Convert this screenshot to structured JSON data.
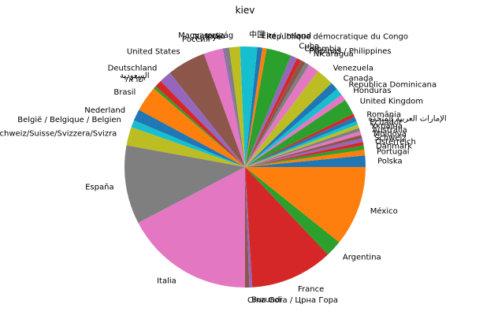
{
  "chart_data": {
    "type": "pie",
    "title": "kiev",
    "start_angle_deg": 0,
    "direction": "counterclockwise",
    "slices": [
      {
        "label": "Polska",
        "value": 1.6,
        "color": "#1f77b4"
      },
      {
        "label": "Portugal",
        "value": 0.8,
        "color": "#ff7f0e"
      },
      {
        "label": "Danmark",
        "value": 0.6,
        "color": "#2ca02c"
      },
      {
        "label": "Österreich",
        "value": 0.5,
        "color": "#d62728"
      },
      {
        "label": "Schweiz",
        "value": 0.5,
        "color": "#9467bd"
      },
      {
        "label": "Moldova",
        "value": 0.5,
        "color": "#8c564b"
      },
      {
        "label": "Australia",
        "value": 0.5,
        "color": "#e377c2"
      },
      {
        "label": "Україна",
        "value": 0.5,
        "color": "#7f7f7f"
      },
      {
        "label": "Ecuador",
        "value": 0.5,
        "color": "#bcbd22"
      },
      {
        "label": "الإمارات العربية المتحدة",
        "value": 0.5,
        "color": "#17becf"
      },
      {
        "label": "România",
        "value": 0.6,
        "color": "#1f77b4"
      },
      {
        "label": "",
        "value": 0.5,
        "color": "#d62728"
      },
      {
        "label": "United Kingdom",
        "value": 2.2,
        "color": "#2ca02c"
      },
      {
        "label": "Honduras",
        "value": 0.9,
        "color": "#e377c2"
      },
      {
        "label": "República Dominicana",
        "value": 1.0,
        "color": "#17becf"
      },
      {
        "label": "Canada",
        "value": 1.1,
        "color": "#1f77b4"
      },
      {
        "label": "Venezuela",
        "value": 2.5,
        "color": "#bcbd22"
      },
      {
        "label": "",
        "value": 1.5,
        "color": "#e377c2"
      },
      {
        "label": "Nicaragua",
        "value": 0.6,
        "color": "#7f7f7f"
      },
      {
        "label": "Pilipinas / Philippines",
        "value": 0.7,
        "color": "#8c564b"
      },
      {
        "label": "Colombia",
        "value": 0.6,
        "color": "#d62728"
      },
      {
        "label": "Cuba",
        "value": 0.9,
        "color": "#9467bd"
      },
      {
        "label": "",
        "value": 3.5,
        "color": "#2ca02c"
      },
      {
        "label": "République démocratique du Congo",
        "value": 0.6,
        "color": "#ff7f0e"
      },
      {
        "label": "Éire / Ireland",
        "value": 0.7,
        "color": "#1f77b4"
      },
      {
        "label": "中国",
        "value": 2.4,
        "color": "#17becf"
      },
      {
        "label": "Magyarország",
        "value": 1.5,
        "color": "#bcbd22"
      },
      {
        "label": "India",
        "value": 0.6,
        "color": "#7f7f7f"
      },
      {
        "label": "Türkiye",
        "value": 0.3,
        "color": "#9467bd"
      },
      {
        "label": "Россия",
        "value": 2.7,
        "color": "#e377c2"
      },
      {
        "label": "United States",
        "value": 5.4,
        "color": "#8c564b"
      },
      {
        "label": "Deutschland",
        "value": 1.7,
        "color": "#9467bd"
      },
      {
        "label": "السعودية",
        "value": 1.0,
        "color": "#d62728"
      },
      {
        "label": "ישראל",
        "value": 0.4,
        "color": "#2ca02c"
      },
      {
        "label": "Brasil",
        "value": 3.6,
        "color": "#ff7f0e"
      },
      {
        "label": "Nederland",
        "value": 1.6,
        "color": "#1f77b4"
      },
      {
        "label": "België / Belgique / Belgien",
        "value": 1.0,
        "color": "#17becf"
      },
      {
        "label": "Schweiz/Suisse/Svizzera/Svizra",
        "value": 2.6,
        "color": "#bcbd22"
      },
      {
        "label": "España",
        "value": 11.0,
        "color": "#7f7f7f"
      },
      {
        "label": "Italia",
        "value": 18.1,
        "color": "#e377c2"
      },
      {
        "label": "Crna Gora / Црна Гора",
        "value": 0.6,
        "color": "#8c564b"
      },
      {
        "label": "Burundi",
        "value": 0.4,
        "color": "#9467bd"
      },
      {
        "label": "France",
        "value": 11.6,
        "color": "#d62728"
      },
      {
        "label": "Argentina",
        "value": 2.3,
        "color": "#2ca02c"
      },
      {
        "label": "México",
        "value": 11.2,
        "color": "#ff7f0e"
      }
    ]
  }
}
